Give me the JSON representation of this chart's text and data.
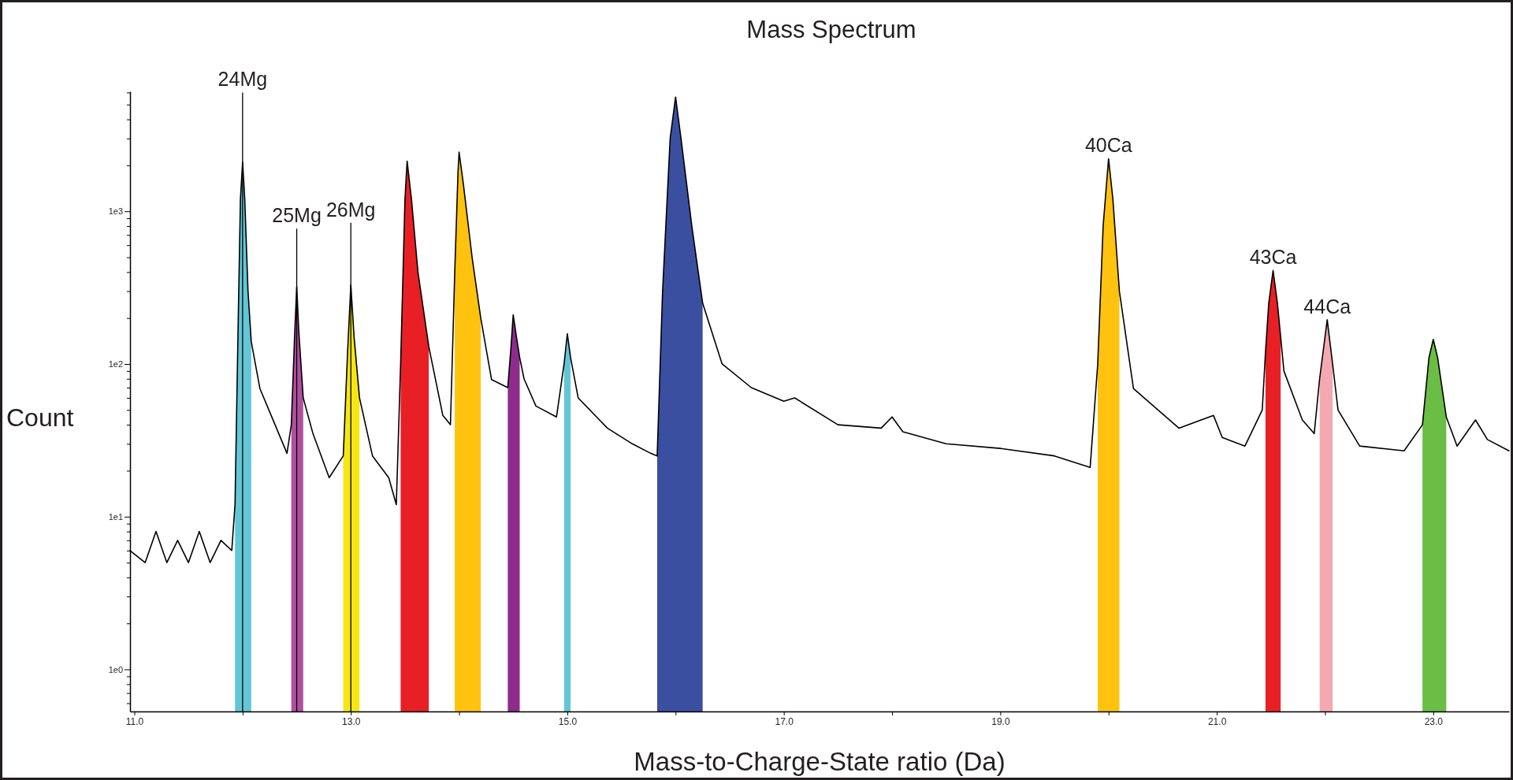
{
  "chart_data": {
    "type": "line",
    "title": "Mass Spectrum",
    "xlabel": "Mass-to-Charge-State ratio (Da)",
    "ylabel": "Count",
    "log": "y",
    "grid": false,
    "marker": "none",
    "line_style": "solid",
    "xlim": [
      10.96,
      23.7
    ],
    "xticks": [
      {
        "value": 11,
        "label": "11.0"
      },
      {
        "value": 12,
        "label": null
      },
      {
        "value": 13,
        "label": "13.0"
      },
      {
        "value": 14,
        "label": null
      },
      {
        "value": 15,
        "label": "15.0"
      },
      {
        "value": 16,
        "label": null
      },
      {
        "value": 17,
        "label": "17.0"
      },
      {
        "value": 18,
        "label": null
      },
      {
        "value": 19,
        "label": "19.0"
      },
      {
        "value": 20,
        "label": null
      },
      {
        "value": 21,
        "label": "21.0"
      },
      {
        "value": 22,
        "label": null
      },
      {
        "value": 23,
        "label": "23.0"
      }
    ],
    "ylim": [
      0.53,
      6100
    ],
    "yticks": [
      {
        "value": 0.6,
        "label": null
      },
      {
        "value": 0.7,
        "label": null
      },
      {
        "value": 0.8,
        "label": null
      },
      {
        "value": 0.9,
        "label": null
      },
      {
        "value": 1,
        "label": "1e0"
      },
      {
        "value": 2,
        "label": null
      },
      {
        "value": 3,
        "label": null
      },
      {
        "value": 4,
        "label": null
      },
      {
        "value": 5,
        "label": null
      },
      {
        "value": 6,
        "label": null
      },
      {
        "value": 7,
        "label": null
      },
      {
        "value": 8,
        "label": null
      },
      {
        "value": 9,
        "label": null
      },
      {
        "value": 10,
        "label": "1e1"
      },
      {
        "value": 20,
        "label": null
      },
      {
        "value": 30,
        "label": null
      },
      {
        "value": 40,
        "label": null
      },
      {
        "value": 50,
        "label": null
      },
      {
        "value": 60,
        "label": null
      },
      {
        "value": 70,
        "label": null
      },
      {
        "value": 80,
        "label": null
      },
      {
        "value": 90,
        "label": null
      },
      {
        "value": 100,
        "label": "1e2"
      },
      {
        "value": 200,
        "label": null
      },
      {
        "value": 300,
        "label": null
      },
      {
        "value": 400,
        "label": null
      },
      {
        "value": 500,
        "label": null
      },
      {
        "value": 600,
        "label": null
      },
      {
        "value": 700,
        "label": null
      },
      {
        "value": 800,
        "label": null
      },
      {
        "value": 900,
        "label": null
      },
      {
        "value": 1000,
        "label": "1e3"
      },
      {
        "value": 2000,
        "label": null
      },
      {
        "value": 3000,
        "label": null
      },
      {
        "value": 4000,
        "label": null
      },
      {
        "value": 5000,
        "label": null
      },
      {
        "value": 6000,
        "label": null
      }
    ],
    "series": [
      {
        "type": "area",
        "color": "#62c6d6",
        "x": [
          11.93,
          11.96,
          11.98,
          12.0,
          12.02,
          12.05,
          12.08
        ],
        "values": [
          12,
          200,
          1200,
          2100,
          1200,
          300,
          140
        ]
      },
      {
        "type": "area",
        "color": "#b04fa0",
        "x": [
          12.45,
          12.48,
          12.5,
          12.52,
          12.56
        ],
        "values": [
          40,
          150,
          320,
          160,
          60
        ]
      },
      {
        "type": "area",
        "color": "#f5e614",
        "x": [
          12.93,
          12.97,
          13.0,
          13.03,
          13.08
        ],
        "values": [
          25,
          120,
          330,
          150,
          60
        ]
      },
      {
        "type": "area",
        "color": "#e82025",
        "x": [
          13.46,
          13.5,
          13.52,
          13.56,
          13.62,
          13.72
        ],
        "values": [
          100,
          1200,
          2130,
          1200,
          400,
          130
        ]
      },
      {
        "type": "area",
        "color": "#ffc20e",
        "x": [
          13.96,
          13.99,
          14.0,
          14.04,
          14.12,
          14.2
        ],
        "values": [
          400,
          1800,
          2440,
          1500,
          500,
          200
        ]
      },
      {
        "type": "area",
        "color": "#8e2c8e",
        "x": [
          14.45,
          14.48,
          14.5,
          14.53,
          14.56
        ],
        "values": [
          70,
          130,
          210,
          150,
          110
        ]
      },
      {
        "type": "area",
        "color": "#62c6d6",
        "x": [
          14.97,
          15.0,
          15.03
        ],
        "values": [
          100,
          158,
          110
        ]
      },
      {
        "type": "area",
        "color": "#3b4fa0",
        "x": [
          15.83,
          15.88,
          15.95,
          16.0,
          16.05,
          16.15,
          16.25
        ],
        "values": [
          25,
          300,
          3000,
          5600,
          3000,
          800,
          250
        ]
      },
      {
        "type": "area",
        "color": "#ffc20e",
        "x": [
          19.9,
          19.95,
          20.0,
          20.04,
          20.1
        ],
        "values": [
          100,
          800,
          2210,
          1200,
          300
        ]
      },
      {
        "type": "area",
        "color": "#e82025",
        "x": [
          21.45,
          21.48,
          21.52,
          21.56,
          21.59
        ],
        "values": [
          120,
          250,
          410,
          250,
          150
        ]
      },
      {
        "type": "area",
        "color": "#f4a9b0",
        "x": [
          21.95,
          22.02,
          22.07
        ],
        "values": [
          80,
          195,
          100
        ]
      },
      {
        "type": "area",
        "color": "#6abd45",
        "x": [
          22.9,
          22.96,
          23.0,
          23.04,
          23.12
        ],
        "values": [
          40,
          110,
          145,
          110,
          45
        ]
      },
      {
        "color": "#000000",
        "x": [
          10.96,
          11.1,
          11.2,
          11.3,
          11.4,
          11.5,
          11.6,
          11.7,
          11.8,
          11.9,
          11.93,
          11.96,
          11.98,
          12.0,
          12.02,
          12.05,
          12.08,
          12.16,
          12.3,
          12.41,
          12.45,
          12.48,
          12.5,
          12.52,
          12.56,
          12.65,
          12.8,
          12.93,
          12.97,
          13.0,
          13.03,
          13.08,
          13.2,
          13.35,
          13.42,
          13.46,
          13.5,
          13.52,
          13.56,
          13.62,
          13.72,
          13.85,
          13.92,
          13.96,
          13.99,
          14.0,
          14.04,
          14.12,
          14.2,
          14.3,
          14.45,
          14.48,
          14.5,
          14.53,
          14.56,
          14.6,
          14.71,
          14.9,
          14.97,
          15.0,
          15.03,
          15.1,
          15.37,
          15.6,
          15.77,
          15.83,
          15.88,
          15.95,
          16.0,
          16.05,
          16.15,
          16.25,
          16.43,
          16.7,
          17.0,
          17.1,
          17.5,
          17.9,
          18.0,
          18.1,
          18.5,
          19.0,
          19.5,
          19.83,
          19.9,
          19.95,
          20.0,
          20.04,
          20.1,
          20.23,
          20.65,
          20.97,
          21.05,
          21.26,
          21.42,
          21.45,
          21.48,
          21.52,
          21.56,
          21.59,
          21.62,
          21.79,
          21.9,
          21.95,
          22.02,
          22.07,
          22.12,
          22.32,
          22.73,
          22.9,
          22.96,
          23.0,
          23.04,
          23.12,
          23.22,
          23.39,
          23.5,
          23.7
        ],
        "values": [
          6,
          5,
          8,
          5,
          7,
          5,
          8,
          5,
          7,
          6,
          12,
          200,
          1200,
          2100,
          1200,
          300,
          140,
          69,
          40,
          26,
          40,
          150,
          320,
          160,
          60,
          35,
          18,
          25,
          120,
          330,
          150,
          60,
          25,
          18,
          12,
          100,
          1200,
          2130,
          1200,
          400,
          130,
          46,
          40,
          400,
          1800,
          2440,
          1500,
          500,
          200,
          79,
          70,
          130,
          210,
          150,
          110,
          80,
          53,
          45,
          100,
          158,
          110,
          60,
          38,
          30,
          26,
          25,
          300,
          3000,
          5600,
          3000,
          800,
          250,
          100,
          70,
          57,
          60,
          40,
          38,
          45,
          36,
          30,
          28,
          25,
          21,
          100,
          800,
          2210,
          1200,
          300,
          69,
          38,
          46,
          33,
          29,
          50,
          120,
          250,
          410,
          250,
          150,
          90,
          43,
          35,
          80,
          195,
          100,
          50,
          29,
          27,
          40,
          110,
          145,
          110,
          45,
          29,
          43,
          32,
          27
        ]
      }
    ],
    "ref_lines": [
      {
        "axis": "x",
        "value": 12.0,
        "color": "#000000"
      },
      {
        "axis": "x",
        "value": 12.5,
        "color": "#000000"
      },
      {
        "axis": "x",
        "value": 13.0,
        "color": "#000000"
      }
    ],
    "annotations": [
      {
        "text": "24Mg",
        "x": 12.0,
        "y": 6000
      },
      {
        "text": "25Mg",
        "x": 12.5,
        "y": 770
      },
      {
        "text": "26Mg",
        "x": 13.0,
        "y": 840
      },
      {
        "text": "40Ca",
        "x": 20.0,
        "y": 2210
      },
      {
        "text": "43Ca",
        "x": 21.52,
        "y": 410
      },
      {
        "text": "44Ca",
        "x": 22.02,
        "y": 195
      }
    ]
  }
}
